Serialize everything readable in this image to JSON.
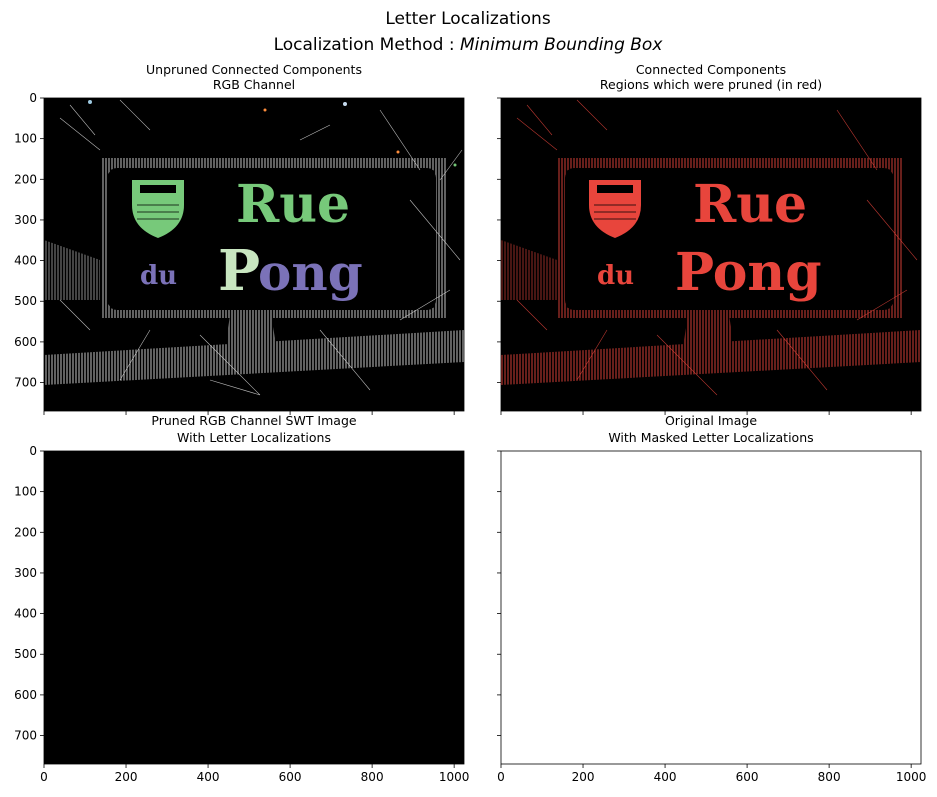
{
  "figure": {
    "title": "Letter Localizations",
    "subtitle_prefix": "Localization Method : ",
    "subtitle_method": "Minimum Bounding Box"
  },
  "chart_data": [
    {
      "type": "image",
      "title_line1": "Unpruned Connected Components",
      "title_line2": "RGB Channel",
      "xlim": [
        0,
        1024
      ],
      "ylim": [
        770,
        0
      ],
      "yticks": [
        0,
        100,
        200,
        300,
        400,
        500,
        600,
        700
      ],
      "xtick_labels_shown": false,
      "background": "#000000"
    },
    {
      "type": "image",
      "title_line1": "Connected Components",
      "title_line2": "Regions which were pruned (in red)",
      "xlim": [
        0,
        1024
      ],
      "ylim": [
        770,
        0
      ],
      "yticks": [
        0,
        100,
        200,
        300,
        400,
        500,
        600,
        700
      ],
      "ytick_labels_shown": false,
      "xtick_labels_shown": false,
      "background": "#000000",
      "pruned_color": "#e8453c"
    },
    {
      "type": "image",
      "title_line1": "Pruned RGB Channel SWT Image",
      "title_line2": "With Letter Localizations",
      "xlim": [
        0,
        1024
      ],
      "ylim": [
        770,
        0
      ],
      "xticks": [
        0,
        200,
        400,
        600,
        800,
        1000
      ],
      "yticks": [
        0,
        100,
        200,
        300,
        400,
        500,
        600,
        700
      ],
      "background": "#000000"
    },
    {
      "type": "image",
      "title_line1": "Original Image",
      "title_line2": "With Masked Letter Localizations",
      "xlim": [
        0,
        1024
      ],
      "ylim": [
        770,
        0
      ],
      "xticks": [
        0,
        200,
        400,
        600,
        800,
        1000
      ],
      "yticks": [
        0,
        100,
        200,
        300,
        400,
        500,
        600,
        700
      ],
      "ytick_labels_shown": false,
      "background": "#ffffff"
    }
  ],
  "sign_text": {
    "line1": "Rue",
    "line2_small": "du",
    "line2_large": "Pong"
  },
  "colors": {
    "green": "#77c97a",
    "purple": "#7b72b8",
    "pale_green": "#c8e6c0",
    "red": "#e8453c",
    "white_lines": "#d8d8d8"
  }
}
